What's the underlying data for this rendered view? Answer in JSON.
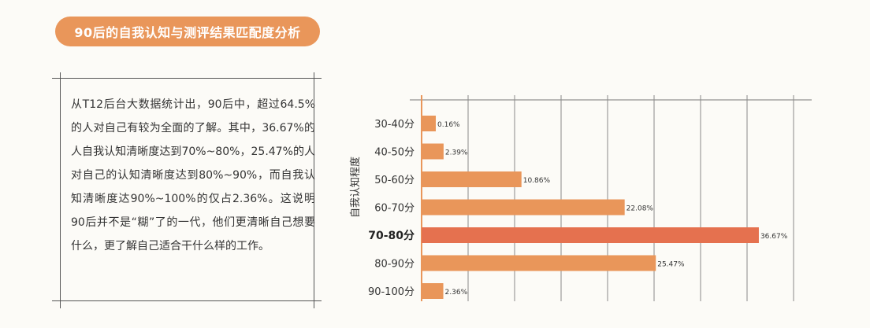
{
  "title": "90后的自我认知与测评结果匹配度分析",
  "description": "从T12后台大数据统计出，90后中，超过64.5%的人对自己有较为全面的了解。其中，36.67%的人自我认知清晰度达到70%~80%，25.47%的人对自己的认知清晰度达到80%~90%，而自我认知清晰度达90%~100%的仅占2.36%。这说明90后并不是“糊”了的一代，他们更清晰自己想要什么，更了解自己适合干什么样的工作。",
  "colors": {
    "bar": "#e9965a",
    "highlight": "#e5714f",
    "title_bg": "#e9965a"
  },
  "chart_data": {
    "type": "bar",
    "orientation": "horizontal",
    "ylabel": "自我认知程度",
    "xlabel": "",
    "xlim": [
      0,
      50
    ],
    "grid": true,
    "categories": [
      "30-40分",
      "40-50分",
      "50-60分",
      "60-70分",
      "70-80分",
      "80-90分",
      "90-100分"
    ],
    "values": [
      0.16,
      2.39,
      10.86,
      22.08,
      36.67,
      25.47,
      2.36
    ],
    "data_labels": [
      "0.16%",
      "2.39%",
      "10.86%",
      "22.08%",
      "36.67%",
      "25.47%",
      "2.36%"
    ],
    "highlight_index": 4
  }
}
